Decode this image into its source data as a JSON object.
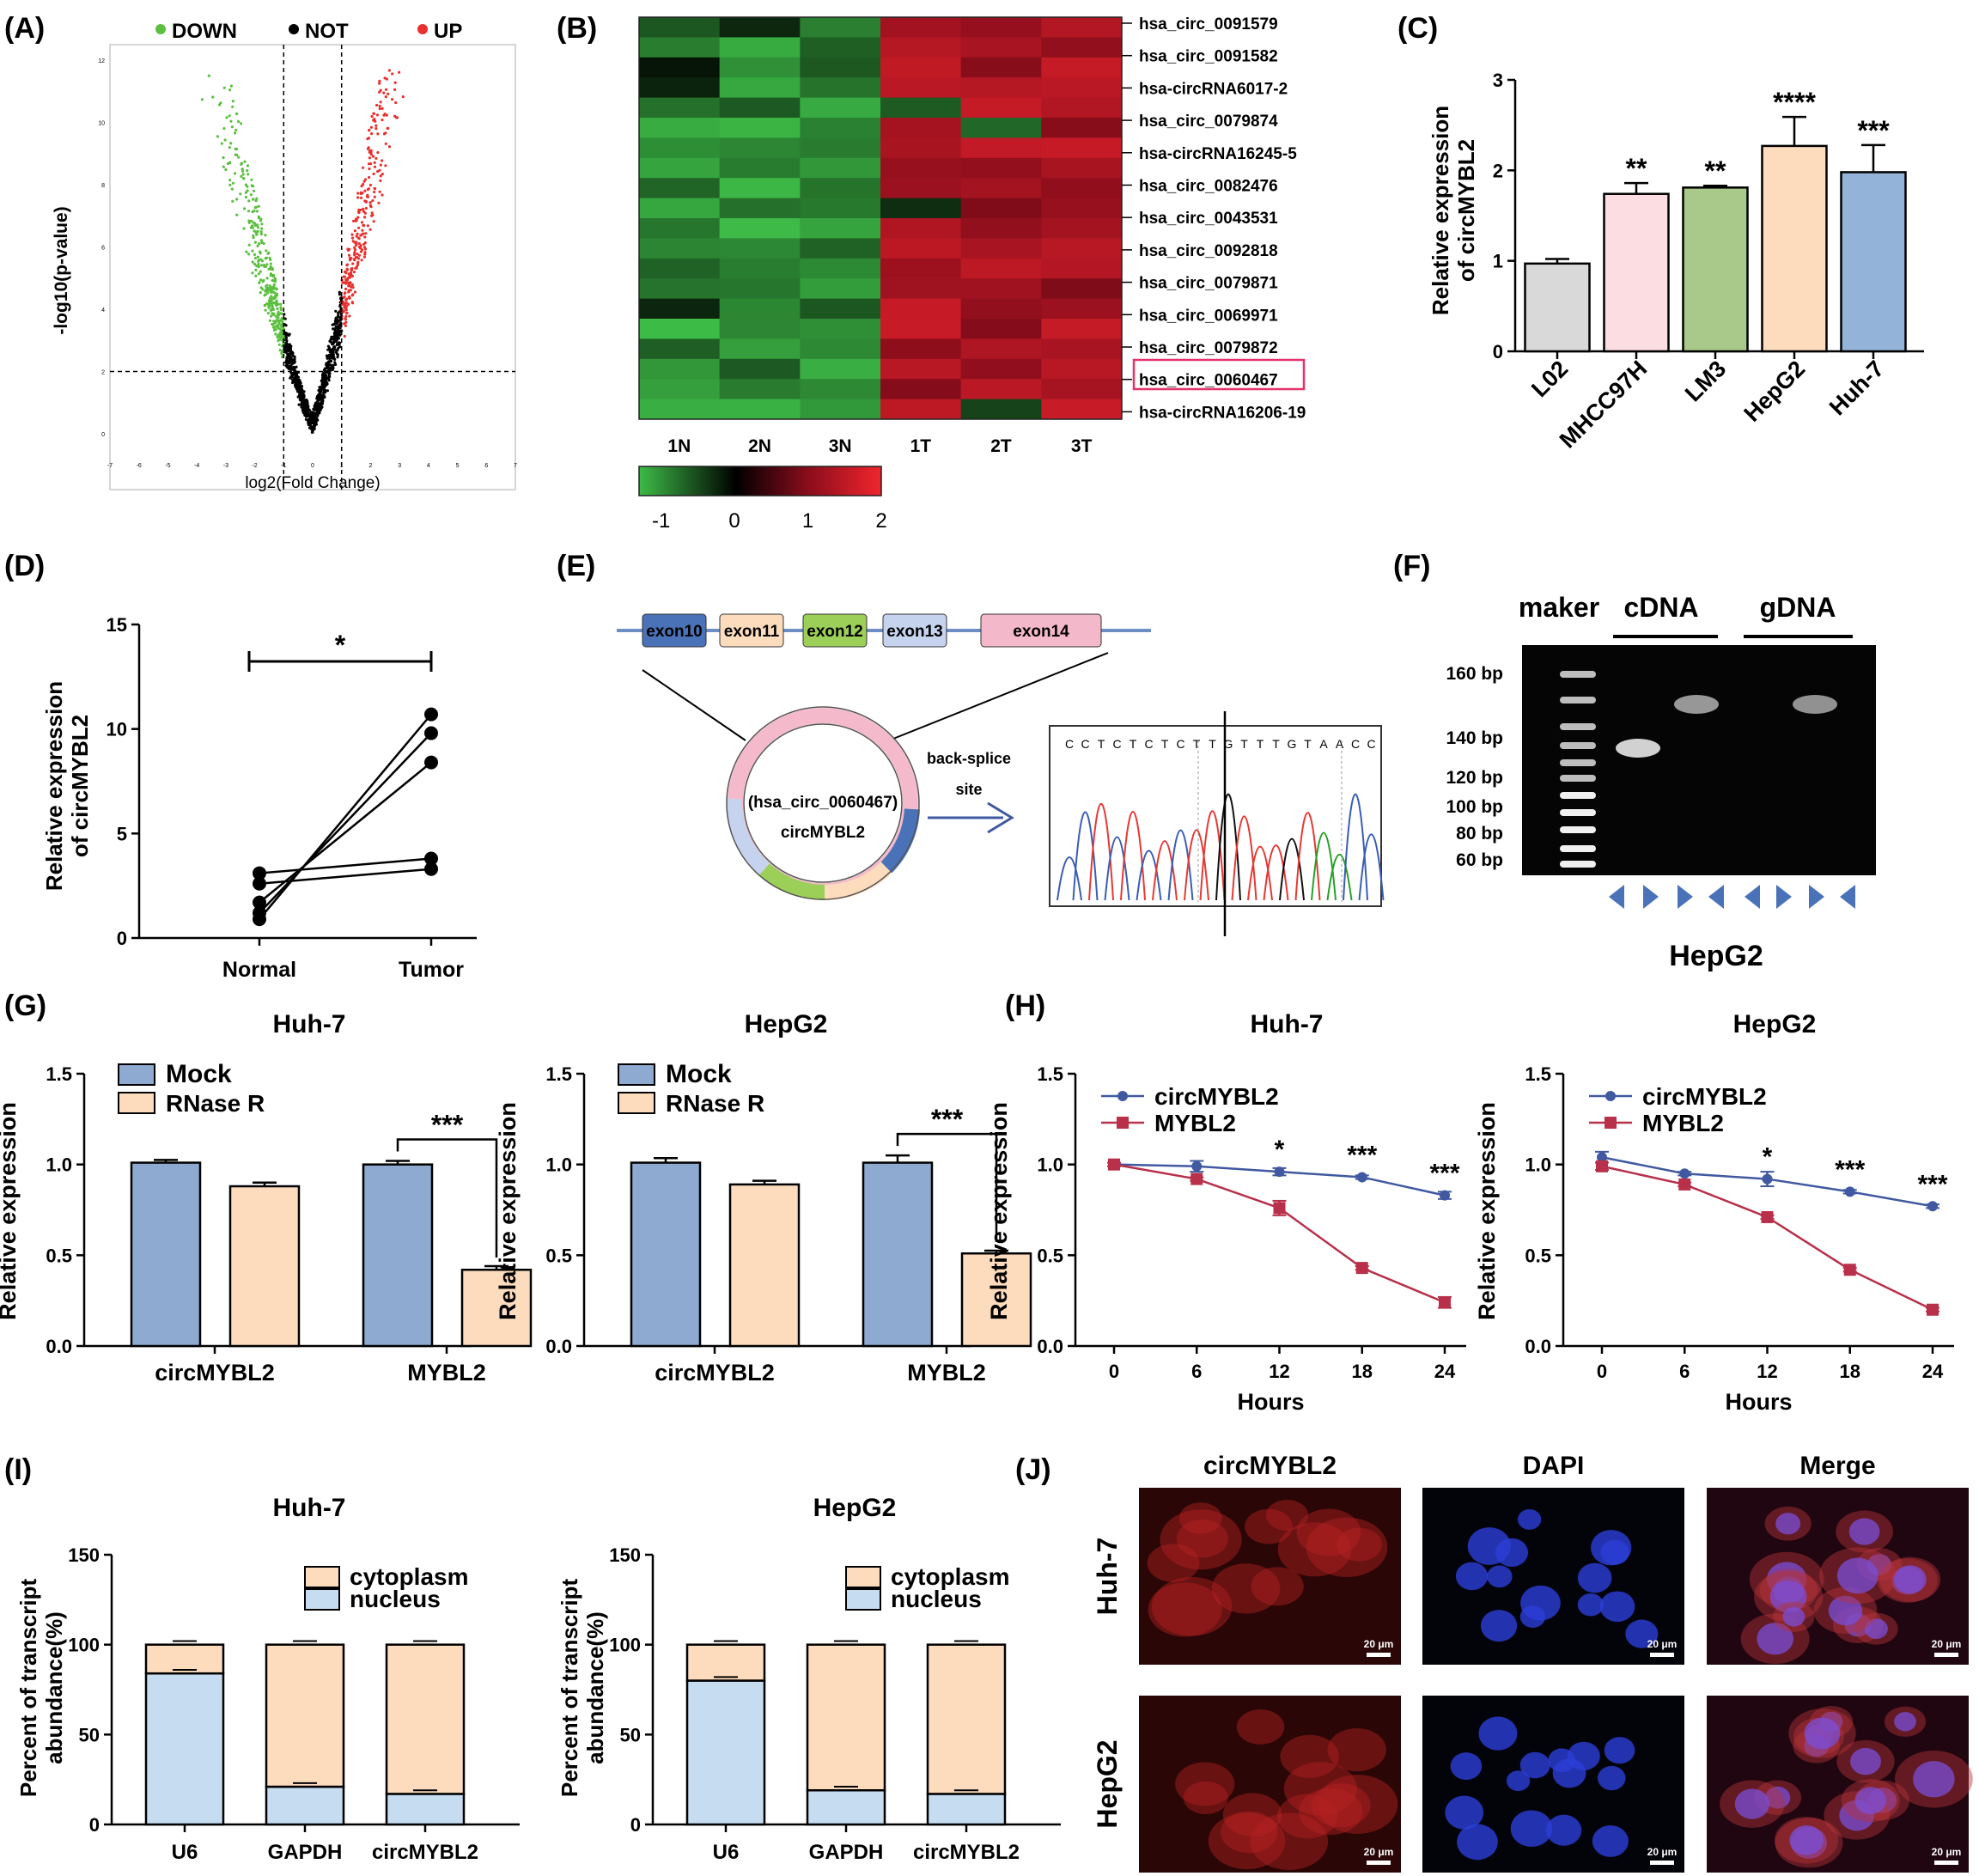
{
  "panel_labels": {
    "A": "(A)",
    "B": "(B)",
    "C": "(C)",
    "D": "(D)",
    "E": "(E)",
    "F": "(F)",
    "G": "(G)",
    "H": "(H)",
    "I": "(I)",
    "J": "(J)"
  },
  "colors": {
    "down": "#5bbf3f",
    "up": "#e8312f",
    "not": "#000000",
    "mock": "#8eaad0",
    "rnase": "#fddcbd",
    "circ_line": "#4059a0",
    "mybl2_line": "#b8304a",
    "cytoplasm": "#fddcbd",
    "nucleus": "#c5dcf1",
    "highlight": "#e5326a"
  },
  "chart_data": [
    {
      "id": "A",
      "type": "scatter",
      "title": "",
      "xlabel": "log2(Fold Change)",
      "ylabel": "-log10(p-value)",
      "legend": [
        {
          "label": "DOWN",
          "color": "#5bbf3f"
        },
        {
          "label": "NOT",
          "color": "#000000"
        },
        {
          "label": "UP",
          "color": "#e8312f"
        }
      ],
      "xlim": [
        -7,
        7
      ],
      "ylim": [
        0,
        12
      ],
      "x_ticks": [
        "-7",
        "-6",
        "-5",
        "-4",
        "-3",
        "-2",
        "-1",
        "0",
        "1",
        "2",
        "3",
        "4",
        "5",
        "6",
        "7"
      ],
      "y_ticks": [
        "0",
        "2",
        "4",
        "6",
        "8",
        "10",
        "12"
      ],
      "fc_cutoff": [
        -1,
        1
      ],
      "p_cutoff": 2
    },
    {
      "id": "B",
      "type": "heatmap",
      "columns": [
        "1N",
        "2N",
        "3N",
        "1T",
        "2T",
        "3T"
      ],
      "rows": [
        "hsa_circ_0091579",
        "hsa_circ_0091582",
        "hsa-circRNA6017-2",
        "hsa_circ_0079874",
        "hsa-circRNA16245-5",
        "hsa_circ_0082476",
        "hsa_circ_0043531",
        "hsa_circ_0092818",
        "hsa_circ_0079871",
        "hsa_circ_0069971",
        "hsa_circ_0079872",
        "hsa_circ_0060467",
        "hsa-circRNA16206-19"
      ],
      "highlighted_row": "hsa_circ_0060467",
      "colorbar_ticks": [
        "-1",
        "0",
        "1",
        "2"
      ],
      "range": [
        -1.3,
        2
      ]
    },
    {
      "id": "C",
      "type": "bar",
      "categories": [
        "L02",
        "MHCC97H",
        "LM3",
        "HepG2",
        "Huh-7"
      ],
      "values": [
        0.97,
        1.74,
        1.81,
        2.27,
        1.98
      ],
      "errors": [
        0.05,
        0.12,
        0.02,
        0.32,
        0.3
      ],
      "colors": [
        "#d9d9d9",
        "#fcdde2",
        "#a9c98a",
        "#fddcbd",
        "#94b3d9"
      ],
      "significance": [
        "",
        "**",
        "**",
        "****",
        "***"
      ],
      "ylabel": "Relative expression of circMYBL2",
      "ylim": [
        0,
        3
      ],
      "y_ticks": [
        "0",
        "1",
        "2",
        "3"
      ]
    },
    {
      "id": "D",
      "type": "line",
      "categories": [
        "Normal",
        "Tumor"
      ],
      "series": [
        {
          "values": [
            3.1,
            3.8
          ]
        },
        {
          "values": [
            2.6,
            3.3
          ]
        },
        {
          "values": [
            1.7,
            8.4
          ]
        },
        {
          "values": [
            1.2,
            9.8
          ]
        },
        {
          "values": [
            0.9,
            10.7
          ]
        }
      ],
      "ylabel": "Relative expression of circMYBL2",
      "ylim": [
        0,
        15
      ],
      "y_ticks": [
        "0",
        "5",
        "10",
        "15"
      ],
      "significance": "*"
    },
    {
      "id": "G1",
      "type": "bar",
      "title": "Huh-7",
      "categories": [
        "circMYBL2",
        "MYBL2"
      ],
      "series": [
        {
          "name": "Mock",
          "values": [
            1.01,
            1.0
          ],
          "errors": [
            0.015,
            0.02
          ]
        },
        {
          "name": "RNase R",
          "values": [
            0.88,
            0.42
          ],
          "errors": [
            0.02,
            0.02
          ]
        }
      ],
      "ylabel": "Relative expression",
      "ylim": [
        0,
        1.5
      ],
      "y_ticks": [
        "0.0",
        "0.5",
        "1.0",
        "1.5"
      ],
      "significance": "***"
    },
    {
      "id": "G2",
      "type": "bar",
      "title": "HepG2",
      "categories": [
        "circMYBL2",
        "MYBL2"
      ],
      "series": [
        {
          "name": "Mock",
          "values": [
            1.01,
            1.01
          ],
          "errors": [
            0.025,
            0.04
          ]
        },
        {
          "name": "RNase R",
          "values": [
            0.89,
            0.51
          ],
          "errors": [
            0.02,
            0.015
          ]
        }
      ],
      "ylabel": "Relative expression",
      "ylim": [
        0,
        1.5
      ],
      "y_ticks": [
        "0.0",
        "0.5",
        "1.0",
        "1.5"
      ],
      "significance": "***"
    },
    {
      "id": "H1",
      "type": "line",
      "title": "Huh-7",
      "x": [
        0,
        6,
        12,
        18,
        24
      ],
      "series": [
        {
          "name": "circMYBL2",
          "values": [
            1.0,
            0.99,
            0.96,
            0.93,
            0.83
          ],
          "errors": [
            0.01,
            0.03,
            0.02,
            0.01,
            0.02
          ]
        },
        {
          "name": "MYBL2",
          "values": [
            1.0,
            0.92,
            0.76,
            0.43,
            0.24
          ],
          "errors": [
            0.01,
            0.01,
            0.04,
            0.01,
            0.03
          ]
        }
      ],
      "significance": [
        "",
        "",
        "*",
        "***",
        "***"
      ],
      "xlabel": "Hours",
      "ylabel": "Relative expression",
      "ylim": [
        0,
        1.5
      ],
      "y_ticks": [
        "0.0",
        "0.5",
        "1.0",
        "1.5"
      ],
      "x_ticks": [
        "0",
        "6",
        "12",
        "18",
        "24"
      ]
    },
    {
      "id": "H2",
      "type": "line",
      "title": "HepG2",
      "x": [
        0,
        6,
        12,
        18,
        24
      ],
      "series": [
        {
          "name": "circMYBL2",
          "values": [
            1.04,
            0.95,
            0.92,
            0.85,
            0.77
          ],
          "errors": [
            0.03,
            0.01,
            0.04,
            0.01,
            0.01
          ]
        },
        {
          "name": "MYBL2",
          "values": [
            0.99,
            0.89,
            0.71,
            0.42,
            0.2
          ],
          "errors": [
            0.02,
            0.01,
            0.01,
            0.01,
            0.01
          ]
        }
      ],
      "significance": [
        "",
        "",
        "*",
        "***",
        "***"
      ],
      "xlabel": "Hours",
      "ylabel": "Relative expression",
      "ylim": [
        0,
        1.5
      ],
      "y_ticks": [
        "0.0",
        "0.5",
        "1.0",
        "1.5"
      ],
      "x_ticks": [
        "0",
        "6",
        "12",
        "18",
        "24"
      ]
    },
    {
      "id": "I1",
      "type": "bar",
      "stacked": true,
      "title": "Huh-7",
      "categories": [
        "U6",
        "GAPDH",
        "circMYBL2"
      ],
      "series": [
        {
          "name": "nucleus",
          "values": [
            84,
            21,
            17
          ]
        },
        {
          "name": "cytoplasm",
          "values": [
            16,
            79,
            83
          ]
        }
      ],
      "ylabel": "Percent of transcript abundance(%)",
      "ylim": [
        0,
        150
      ],
      "y_ticks": [
        "0",
        "50",
        "100",
        "150"
      ]
    },
    {
      "id": "I2",
      "type": "bar",
      "stacked": true,
      "title": "HepG2",
      "categories": [
        "U6",
        "GAPDH",
        "circMYBL2"
      ],
      "series": [
        {
          "name": "nucleus",
          "values": [
            80,
            19,
            17
          ]
        },
        {
          "name": "cytoplasm",
          "values": [
            20,
            81,
            83
          ]
        }
      ],
      "ylabel": "Percent of transcript abundance(%)",
      "ylim": [
        0,
        150
      ],
      "y_ticks": [
        "0",
        "50",
        "100",
        "150"
      ]
    }
  ],
  "panel_e": {
    "exons": [
      "exon10",
      "exon11",
      "exon12",
      "exon13",
      "exon14"
    ],
    "circ_name": "(hsa_circ_0060467)",
    "circ_alias": "circMYBL2",
    "arrow_label_1": "back-splice",
    "arrow_label_2": "site",
    "sequence": [
      "C",
      "C",
      "T",
      "C",
      "T",
      "C",
      "T",
      "C",
      "T",
      "T",
      "G",
      "T",
      "T",
      "T",
      "G",
      "T",
      "A",
      "A",
      "C",
      "C"
    ]
  },
  "panel_f": {
    "headers": [
      "maker",
      "cDNA",
      "gDNA"
    ],
    "bp_labels": [
      "160 bp",
      "140 bp",
      "120 bp",
      "100 bp",
      "80 bp",
      "60 bp"
    ],
    "cell_line": "HepG2"
  },
  "panel_j": {
    "columns": [
      "circMYBL2",
      "DAPI",
      "Merge"
    ],
    "rows": [
      "Huh-7",
      "HepG2"
    ],
    "scale_bar": "20 μm"
  }
}
